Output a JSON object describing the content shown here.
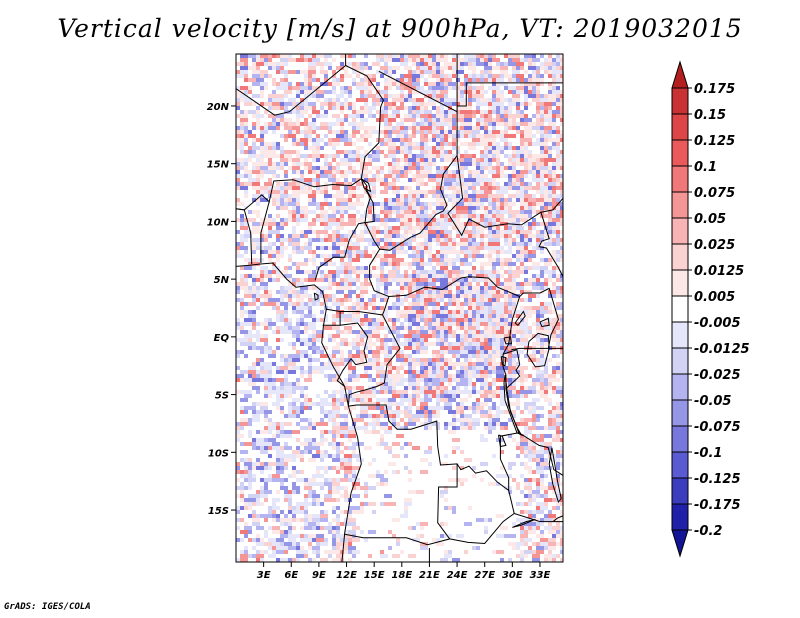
{
  "title": "Vertical velocity [m/s] at 900hPa, VT: 2019032015",
  "footer": "GrADS: IGES/COLA",
  "chart_data": {
    "type": "heatmap",
    "variable": "Vertical velocity",
    "units": "m/s",
    "level": "900hPa",
    "valid_time": "2019032015",
    "lon_range": [
      0,
      35.5
    ],
    "lat_range": [
      -19.5,
      24.5
    ],
    "x_ticks": [
      {
        "value": 3,
        "label": "3E"
      },
      {
        "value": 6,
        "label": "6E"
      },
      {
        "value": 9,
        "label": "9E"
      },
      {
        "value": 12,
        "label": "12E"
      },
      {
        "value": 15,
        "label": "15E"
      },
      {
        "value": 18,
        "label": "18E"
      },
      {
        "value": 21,
        "label": "21E"
      },
      {
        "value": 24,
        "label": "24E"
      },
      {
        "value": 27,
        "label": "27E"
      },
      {
        "value": 30,
        "label": "30E"
      },
      {
        "value": 33,
        "label": "33E"
      }
    ],
    "y_ticks": [
      {
        "value": 20,
        "label": "20N"
      },
      {
        "value": 15,
        "label": "15N"
      },
      {
        "value": 10,
        "label": "10N"
      },
      {
        "value": 5,
        "label": "5N"
      },
      {
        "value": 0,
        "label": "EQ"
      },
      {
        "value": -5,
        "label": "5S"
      },
      {
        "value": -10,
        "label": "10S"
      },
      {
        "value": -15,
        "label": "15S"
      }
    ],
    "colorbar": {
      "labels": [
        "0.175",
        "0.15",
        "0.125",
        "0.1",
        "0.075",
        "0.05",
        "0.025",
        "0.0125",
        "0.005",
        "-0.005",
        "-0.0125",
        "-0.025",
        "-0.05",
        "-0.075",
        "-0.1",
        "-0.125",
        "-0.175",
        "-0.2"
      ],
      "colors": [
        "#b41e1e",
        "#c83232",
        "#dc4646",
        "#ea5a5a",
        "#f07878",
        "#f49696",
        "#f8b4b4",
        "#fad2d2",
        "#fde8e8",
        "#ffffff",
        "#e6e6fa",
        "#d2d2f5",
        "#b4b4f0",
        "#9696e6",
        "#7878dc",
        "#5a5ad2",
        "#3c3cbe",
        "#2020a8",
        "#141496"
      ]
    }
  }
}
